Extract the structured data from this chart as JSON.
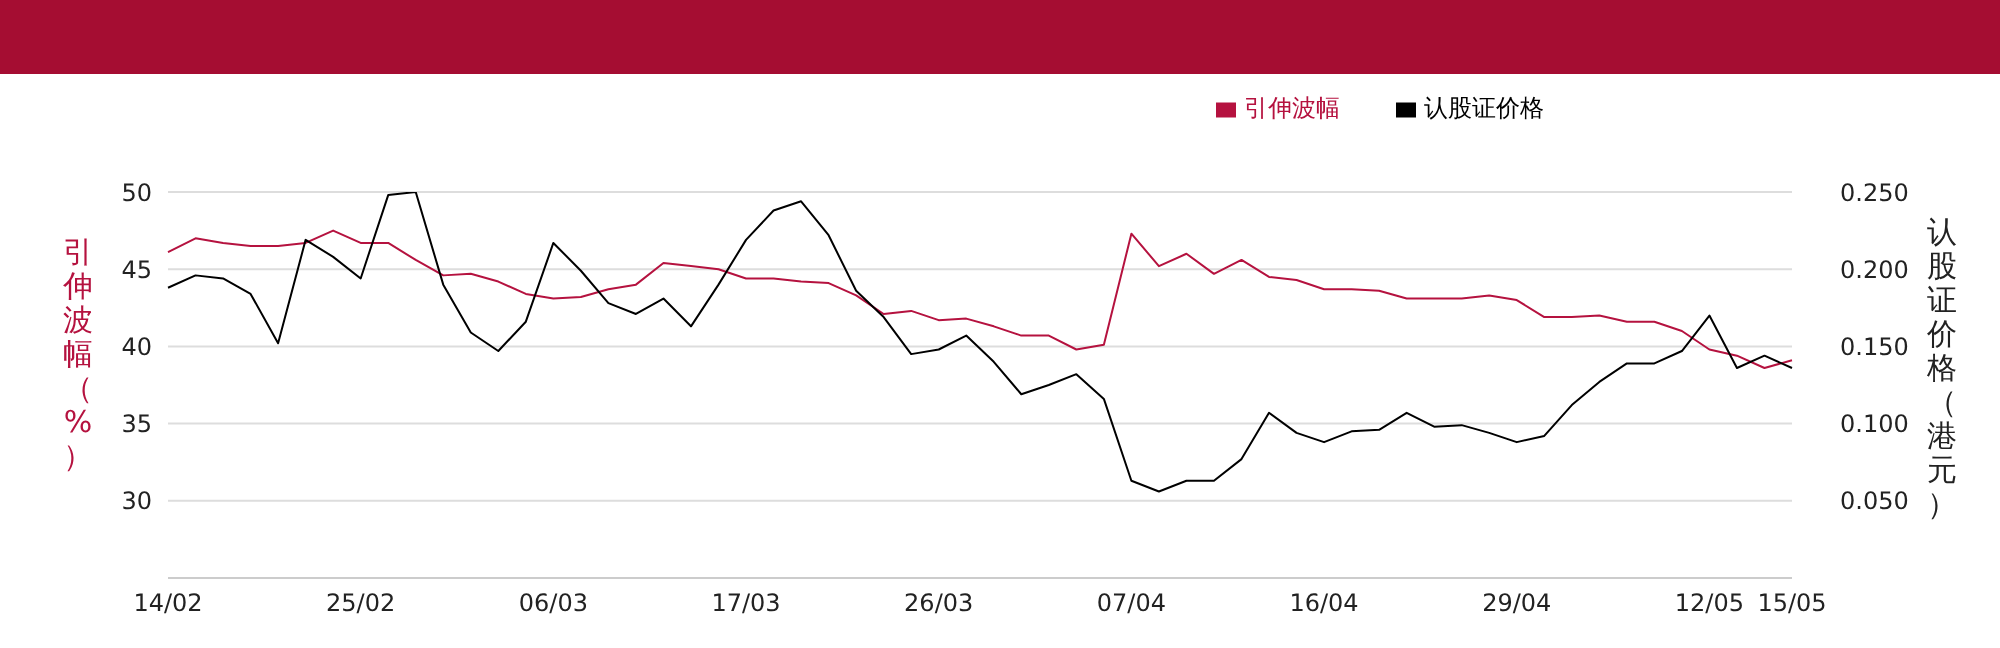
{
  "chart_data": {
    "type": "line",
    "ylabel": "引伸波幅（%）",
    "y2label": "认股证价格（港元）",
    "categories": [
      "14/02",
      null,
      null,
      null,
      null,
      null,
      null,
      "25/02",
      null,
      null,
      null,
      null,
      null,
      null,
      "06/03",
      null,
      null,
      null,
      null,
      null,
      null,
      "17/03",
      null,
      null,
      null,
      null,
      null,
      null,
      "26/03",
      null,
      null,
      null,
      null,
      null,
      null,
      "07/04",
      null,
      null,
      null,
      null,
      null,
      null,
      "16/04",
      null,
      null,
      null,
      null,
      null,
      null,
      "29/04",
      null,
      null,
      null,
      null,
      null,
      null,
      "12/05",
      null,
      null,
      "15/05"
    ],
    "series": [
      {
        "name": "引伸波幅",
        "color": "#b5123f",
        "values": [
          46.1,
          47.0,
          46.7,
          46.5,
          46.5,
          46.7,
          47.5,
          46.7,
          46.7,
          45.6,
          44.6,
          44.7,
          44.2,
          43.4,
          43.1,
          43.2,
          43.7,
          44.0,
          45.4,
          45.2,
          45.0,
          44.4,
          44.4,
          44.2,
          44.1,
          43.3,
          42.1,
          42.3,
          41.7,
          41.8,
          41.3,
          40.7,
          40.7,
          39.8,
          40.1,
          47.3,
          45.2,
          46.0,
          44.7,
          45.6,
          44.5,
          44.3,
          43.7,
          43.7,
          43.6,
          43.1,
          43.1,
          43.1,
          43.3,
          43.0,
          41.9,
          41.9,
          42.0,
          41.6,
          41.6,
          41.0,
          39.8,
          39.4,
          38.6,
          39.1
        ]
      },
      {
        "name": "认股证价格",
        "color": "#000000",
        "axis": "y2",
        "values": [
          0.188,
          0.196,
          0.194,
          0.184,
          0.152,
          0.219,
          0.208,
          0.194,
          0.248,
          0.25,
          0.19,
          0.159,
          0.147,
          0.166,
          0.217,
          0.199,
          0.178,
          0.171,
          0.181,
          0.163,
          0.19,
          0.219,
          0.238,
          0.244,
          0.222,
          0.186,
          0.169,
          0.145,
          0.148,
          0.157,
          0.14,
          0.119,
          0.125,
          0.132,
          0.116,
          0.063,
          0.056,
          0.063,
          0.063,
          0.077,
          0.107,
          0.094,
          0.088,
          0.095,
          0.096,
          0.107,
          0.098,
          0.099,
          0.094,
          0.088,
          0.092,
          0.112,
          0.127,
          0.139,
          0.139,
          0.147,
          0.17,
          0.136,
          0.144,
          0.136
        ]
      }
    ],
    "ylim": [
      25,
      50
    ],
    "yticks": [
      30,
      35,
      40,
      45,
      50
    ],
    "y2lim": [
      0,
      0.25
    ],
    "y2ticks": [
      {
        "value": 0.05,
        "label": "0.050"
      },
      {
        "value": 0.1,
        "label": "0.100"
      },
      {
        "value": 0.15,
        "label": "0.150"
      },
      {
        "value": 0.2,
        "label": "0.200"
      },
      {
        "value": 0.25,
        "label": "0.250"
      }
    ],
    "grid": "y",
    "legend": "top right"
  }
}
